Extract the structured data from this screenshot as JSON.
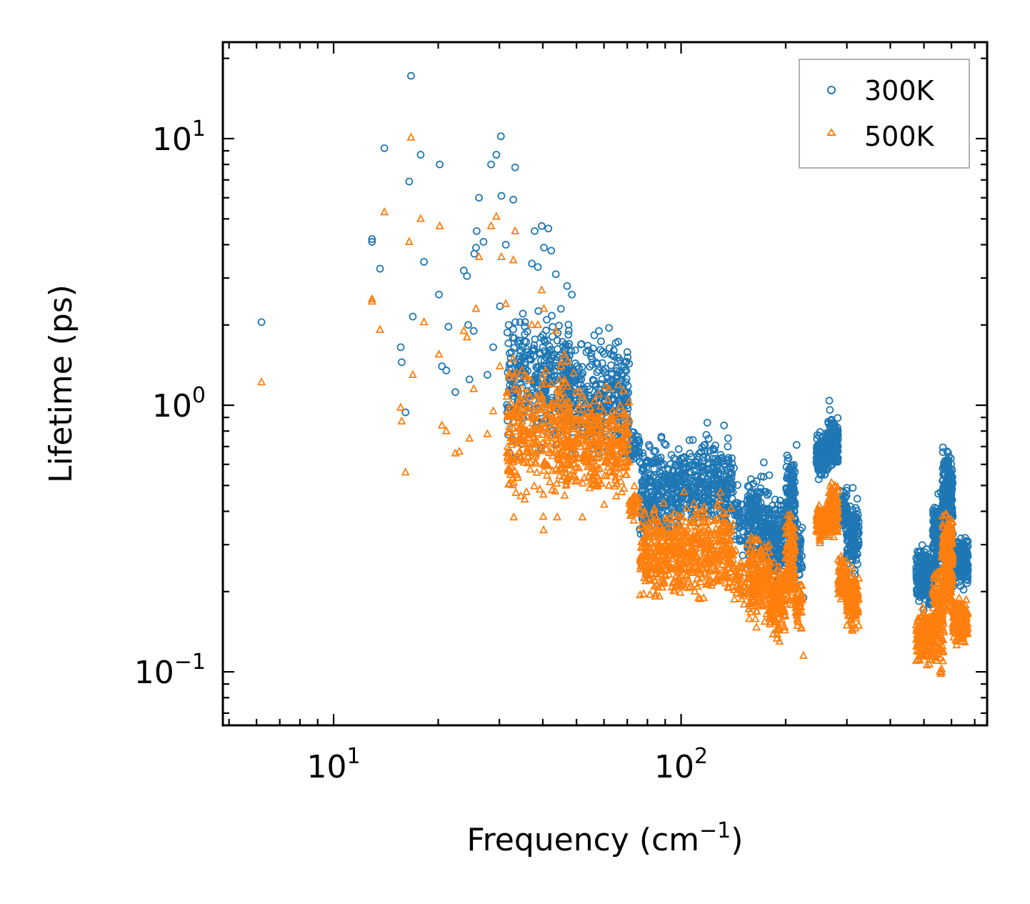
{
  "chart_data": {
    "type": "scatter",
    "title": "",
    "xlabel": "Frequency (cm",
    "xlabel_sup": "−1",
    "xlabel_end": ")",
    "ylabel": "Lifetime (ps)",
    "xscale": "log",
    "yscale": "log",
    "xlim": [
      4.8,
      760
    ],
    "ylim": [
      0.063,
      23
    ],
    "x_ticks": [
      {
        "value": 10,
        "base": "10",
        "exp": "1"
      },
      {
        "value": 100,
        "base": "10",
        "exp": "2"
      }
    ],
    "y_ticks": [
      {
        "value": 0.1,
        "base": "10",
        "exp": "−1"
      },
      {
        "value": 1,
        "base": "10",
        "exp": "0"
      },
      {
        "value": 10,
        "base": "10",
        "exp": "1"
      }
    ],
    "legend_position": "top-right",
    "colors": {
      "300K": "#1f77b4",
      "500K": "#ff7f0e"
    },
    "series": [
      {
        "name": "300K",
        "marker": "circle",
        "color": "#1f77b4",
        "points": [
          [
            6.2,
            2.05
          ],
          [
            12.9,
            4.1
          ],
          [
            12.9,
            4.2
          ],
          [
            13.6,
            3.25
          ],
          [
            14.0,
            9.2
          ],
          [
            15.6,
            1.65
          ],
          [
            15.7,
            1.45
          ],
          [
            16.1,
            0.94
          ],
          [
            16.5,
            6.9
          ],
          [
            16.7,
            17.2
          ],
          [
            16.9,
            2.15
          ],
          [
            17.8,
            8.7
          ],
          [
            18.2,
            3.45
          ],
          [
            20.1,
            2.6
          ],
          [
            20.2,
            8.0
          ],
          [
            20.5,
            1.4
          ],
          [
            21.1,
            1.35
          ],
          [
            21.4,
            1.97
          ],
          [
            22.4,
            1.12
          ],
          [
            23.7,
            3.2
          ],
          [
            24.2,
            3.05
          ],
          [
            24.4,
            2.0
          ],
          [
            24.6,
            1.25
          ],
          [
            25.3,
            1.9
          ],
          [
            25.4,
            3.7
          ],
          [
            25.7,
            3.9
          ],
          [
            25.8,
            4.5
          ],
          [
            26.2,
            6.0
          ],
          [
            27.0,
            4.1
          ],
          [
            27.7,
            1.3
          ],
          [
            28.4,
            8.0
          ],
          [
            28.8,
            1.65
          ],
          [
            29.4,
            8.7
          ],
          [
            30.1,
            2.35
          ],
          [
            30.3,
            10.2
          ],
          [
            30.4,
            6.1
          ],
          [
            31.3,
            4.0
          ],
          [
            31.9,
            2.0
          ],
          [
            32.9,
            5.9
          ],
          [
            33.3,
            7.8
          ],
          [
            32.1,
            0.66
          ],
          [
            33.0,
            0.63
          ],
          [
            37.2,
            3.4
          ],
          [
            37.9,
            4.5
          ],
          [
            38.7,
            3.3
          ],
          [
            39.7,
            4.7
          ],
          [
            40.3,
            3.9
          ],
          [
            41.5,
            4.6
          ],
          [
            42.3,
            3.8
          ],
          [
            43.6,
            3.1
          ],
          [
            45.1,
            2.3
          ],
          [
            47.0,
            2.8
          ],
          [
            48.5,
            2.6
          ],
          [
            52.3,
            1.1
          ],
          [
            56.0,
            0.92
          ],
          [
            58.0,
            1.9
          ],
          [
            62.0,
            1.95
          ],
          [
            67.0,
            1.2
          ],
          [
            69.0,
            1.45
          ],
          [
            119.0,
            0.86
          ],
          [
            133.0,
            0.84
          ],
          [
            173.0,
            0.61
          ],
          [
            215.0,
            0.71
          ],
          [
            225.0,
            0.19
          ],
          [
            267.0,
            1.04
          ],
          [
            268.0,
            0.96
          ],
          [
            300.0,
            0.49
          ],
          [
            312.0,
            0.49
          ]
        ],
        "clusters": [
          {
            "x_min": 31.5,
            "x_max": 48,
            "y_min": 0.62,
            "y_max": 2.6,
            "n": 320
          },
          {
            "x_min": 46,
            "x_max": 71,
            "y_min": 0.55,
            "y_max": 2.0,
            "n": 360
          },
          {
            "x_min": 71,
            "x_max": 76,
            "y_min": 0.56,
            "y_max": 0.85,
            "n": 40
          },
          {
            "x_min": 76,
            "x_max": 100,
            "y_min": 0.27,
            "y_max": 0.82,
            "n": 280
          },
          {
            "x_min": 100,
            "x_max": 142,
            "y_min": 0.3,
            "y_max": 0.86,
            "n": 320
          },
          {
            "x_min": 142,
            "x_max": 152,
            "y_min": 0.26,
            "y_max": 0.55,
            "n": 40
          },
          {
            "x_min": 155,
            "x_max": 180,
            "y_min": 0.22,
            "y_max": 0.6,
            "n": 200
          },
          {
            "x_min": 180,
            "x_max": 200,
            "y_min": 0.2,
            "y_max": 0.5,
            "n": 140
          },
          {
            "x_min": 200,
            "x_max": 213,
            "y_min": 0.27,
            "y_max": 0.76,
            "n": 130
          },
          {
            "x_min": 213,
            "x_max": 223,
            "y_min": 0.19,
            "y_max": 0.4,
            "n": 50
          },
          {
            "x_min": 245,
            "x_max": 263,
            "y_min": 0.5,
            "y_max": 0.82,
            "n": 140
          },
          {
            "x_min": 263,
            "x_max": 283,
            "y_min": 0.55,
            "y_max": 0.95,
            "n": 150
          },
          {
            "x_min": 283,
            "x_max": 300,
            "y_min": 0.3,
            "y_max": 0.55,
            "n": 80
          },
          {
            "x_min": 300,
            "x_max": 325,
            "y_min": 0.22,
            "y_max": 0.48,
            "n": 130
          },
          {
            "x_min": 475,
            "x_max": 530,
            "y_min": 0.16,
            "y_max": 0.32,
            "n": 200
          },
          {
            "x_min": 530,
            "x_max": 570,
            "y_min": 0.2,
            "y_max": 0.5,
            "n": 160
          },
          {
            "x_min": 565,
            "x_max": 605,
            "y_min": 0.3,
            "y_max": 0.74,
            "n": 220
          },
          {
            "x_min": 605,
            "x_max": 670,
            "y_min": 0.2,
            "y_max": 0.34,
            "n": 200
          }
        ]
      },
      {
        "name": "500K",
        "marker": "triangle",
        "color": "#ff7f0e",
        "points": [
          [
            6.2,
            1.22
          ],
          [
            12.9,
            2.5
          ],
          [
            12.9,
            2.45
          ],
          [
            13.6,
            1.92
          ],
          [
            14.0,
            5.3
          ],
          [
            15.6,
            0.98
          ],
          [
            15.7,
            0.87
          ],
          [
            16.1,
            0.56
          ],
          [
            16.5,
            4.1
          ],
          [
            16.7,
            10.1
          ],
          [
            16.9,
            1.3
          ],
          [
            17.8,
            5.0
          ],
          [
            18.2,
            2.05
          ],
          [
            20.1,
            1.55
          ],
          [
            20.2,
            4.7
          ],
          [
            20.5,
            0.84
          ],
          [
            21.1,
            0.8
          ],
          [
            22.4,
            0.66
          ],
          [
            23.0,
            0.67
          ],
          [
            23.7,
            1.9
          ],
          [
            24.2,
            1.8
          ],
          [
            24.6,
            0.75
          ],
          [
            25.3,
            1.15
          ],
          [
            25.7,
            2.3
          ],
          [
            26.2,
            3.6
          ],
          [
            27.7,
            0.78
          ],
          [
            28.4,
            4.7
          ],
          [
            28.8,
            0.95
          ],
          [
            29.4,
            5.1
          ],
          [
            30.1,
            1.4
          ],
          [
            30.4,
            3.6
          ],
          [
            31.3,
            2.4
          ],
          [
            32.9,
            3.5
          ],
          [
            33.3,
            4.5
          ],
          [
            33.0,
            0.38
          ],
          [
            37.2,
            2.0
          ],
          [
            38.7,
            2.0
          ],
          [
            39.7,
            2.7
          ],
          [
            40.3,
            2.3
          ],
          [
            43.6,
            1.9
          ],
          [
            45.1,
            1.4
          ],
          [
            52.3,
            0.65
          ],
          [
            58.0,
            1.1
          ],
          [
            62.0,
            1.15
          ],
          [
            69.0,
            0.85
          ],
          [
            40.2,
            0.34
          ],
          [
            44.0,
            0.38
          ],
          [
            52.0,
            0.38
          ],
          [
            225.0,
            0.115
          ],
          [
            192.0,
            0.13
          ]
        ],
        "clusters": [
          {
            "x_min": 31.5,
            "x_max": 48,
            "y_min": 0.36,
            "y_max": 1.7,
            "n": 320
          },
          {
            "x_min": 46,
            "x_max": 71,
            "y_min": 0.38,
            "y_max": 1.35,
            "n": 360
          },
          {
            "x_min": 71,
            "x_max": 76,
            "y_min": 0.35,
            "y_max": 0.5,
            "n": 40
          },
          {
            "x_min": 76,
            "x_max": 100,
            "y_min": 0.17,
            "y_max": 0.47,
            "n": 280
          },
          {
            "x_min": 100,
            "x_max": 142,
            "y_min": 0.17,
            "y_max": 0.5,
            "n": 320
          },
          {
            "x_min": 142,
            "x_max": 152,
            "y_min": 0.15,
            "y_max": 0.3,
            "n": 40
          },
          {
            "x_min": 155,
            "x_max": 180,
            "y_min": 0.14,
            "y_max": 0.35,
            "n": 200
          },
          {
            "x_min": 180,
            "x_max": 200,
            "y_min": 0.12,
            "y_max": 0.28,
            "n": 140
          },
          {
            "x_min": 200,
            "x_max": 213,
            "y_min": 0.16,
            "y_max": 0.44,
            "n": 130
          },
          {
            "x_min": 213,
            "x_max": 223,
            "y_min": 0.13,
            "y_max": 0.24,
            "n": 50
          },
          {
            "x_min": 245,
            "x_max": 263,
            "y_min": 0.3,
            "y_max": 0.45,
            "n": 140
          },
          {
            "x_min": 263,
            "x_max": 283,
            "y_min": 0.3,
            "y_max": 0.53,
            "n": 150
          },
          {
            "x_min": 283,
            "x_max": 300,
            "y_min": 0.17,
            "y_max": 0.3,
            "n": 80
          },
          {
            "x_min": 300,
            "x_max": 325,
            "y_min": 0.13,
            "y_max": 0.27,
            "n": 130
          },
          {
            "x_min": 475,
            "x_max": 530,
            "y_min": 0.1,
            "y_max": 0.18,
            "n": 200
          },
          {
            "x_min": 530,
            "x_max": 570,
            "y_min": 0.085,
            "y_max": 0.3,
            "n": 160
          },
          {
            "x_min": 565,
            "x_max": 605,
            "y_min": 0.15,
            "y_max": 0.46,
            "n": 220
          },
          {
            "x_min": 605,
            "x_max": 670,
            "y_min": 0.12,
            "y_max": 0.2,
            "n": 200
          }
        ]
      }
    ]
  }
}
